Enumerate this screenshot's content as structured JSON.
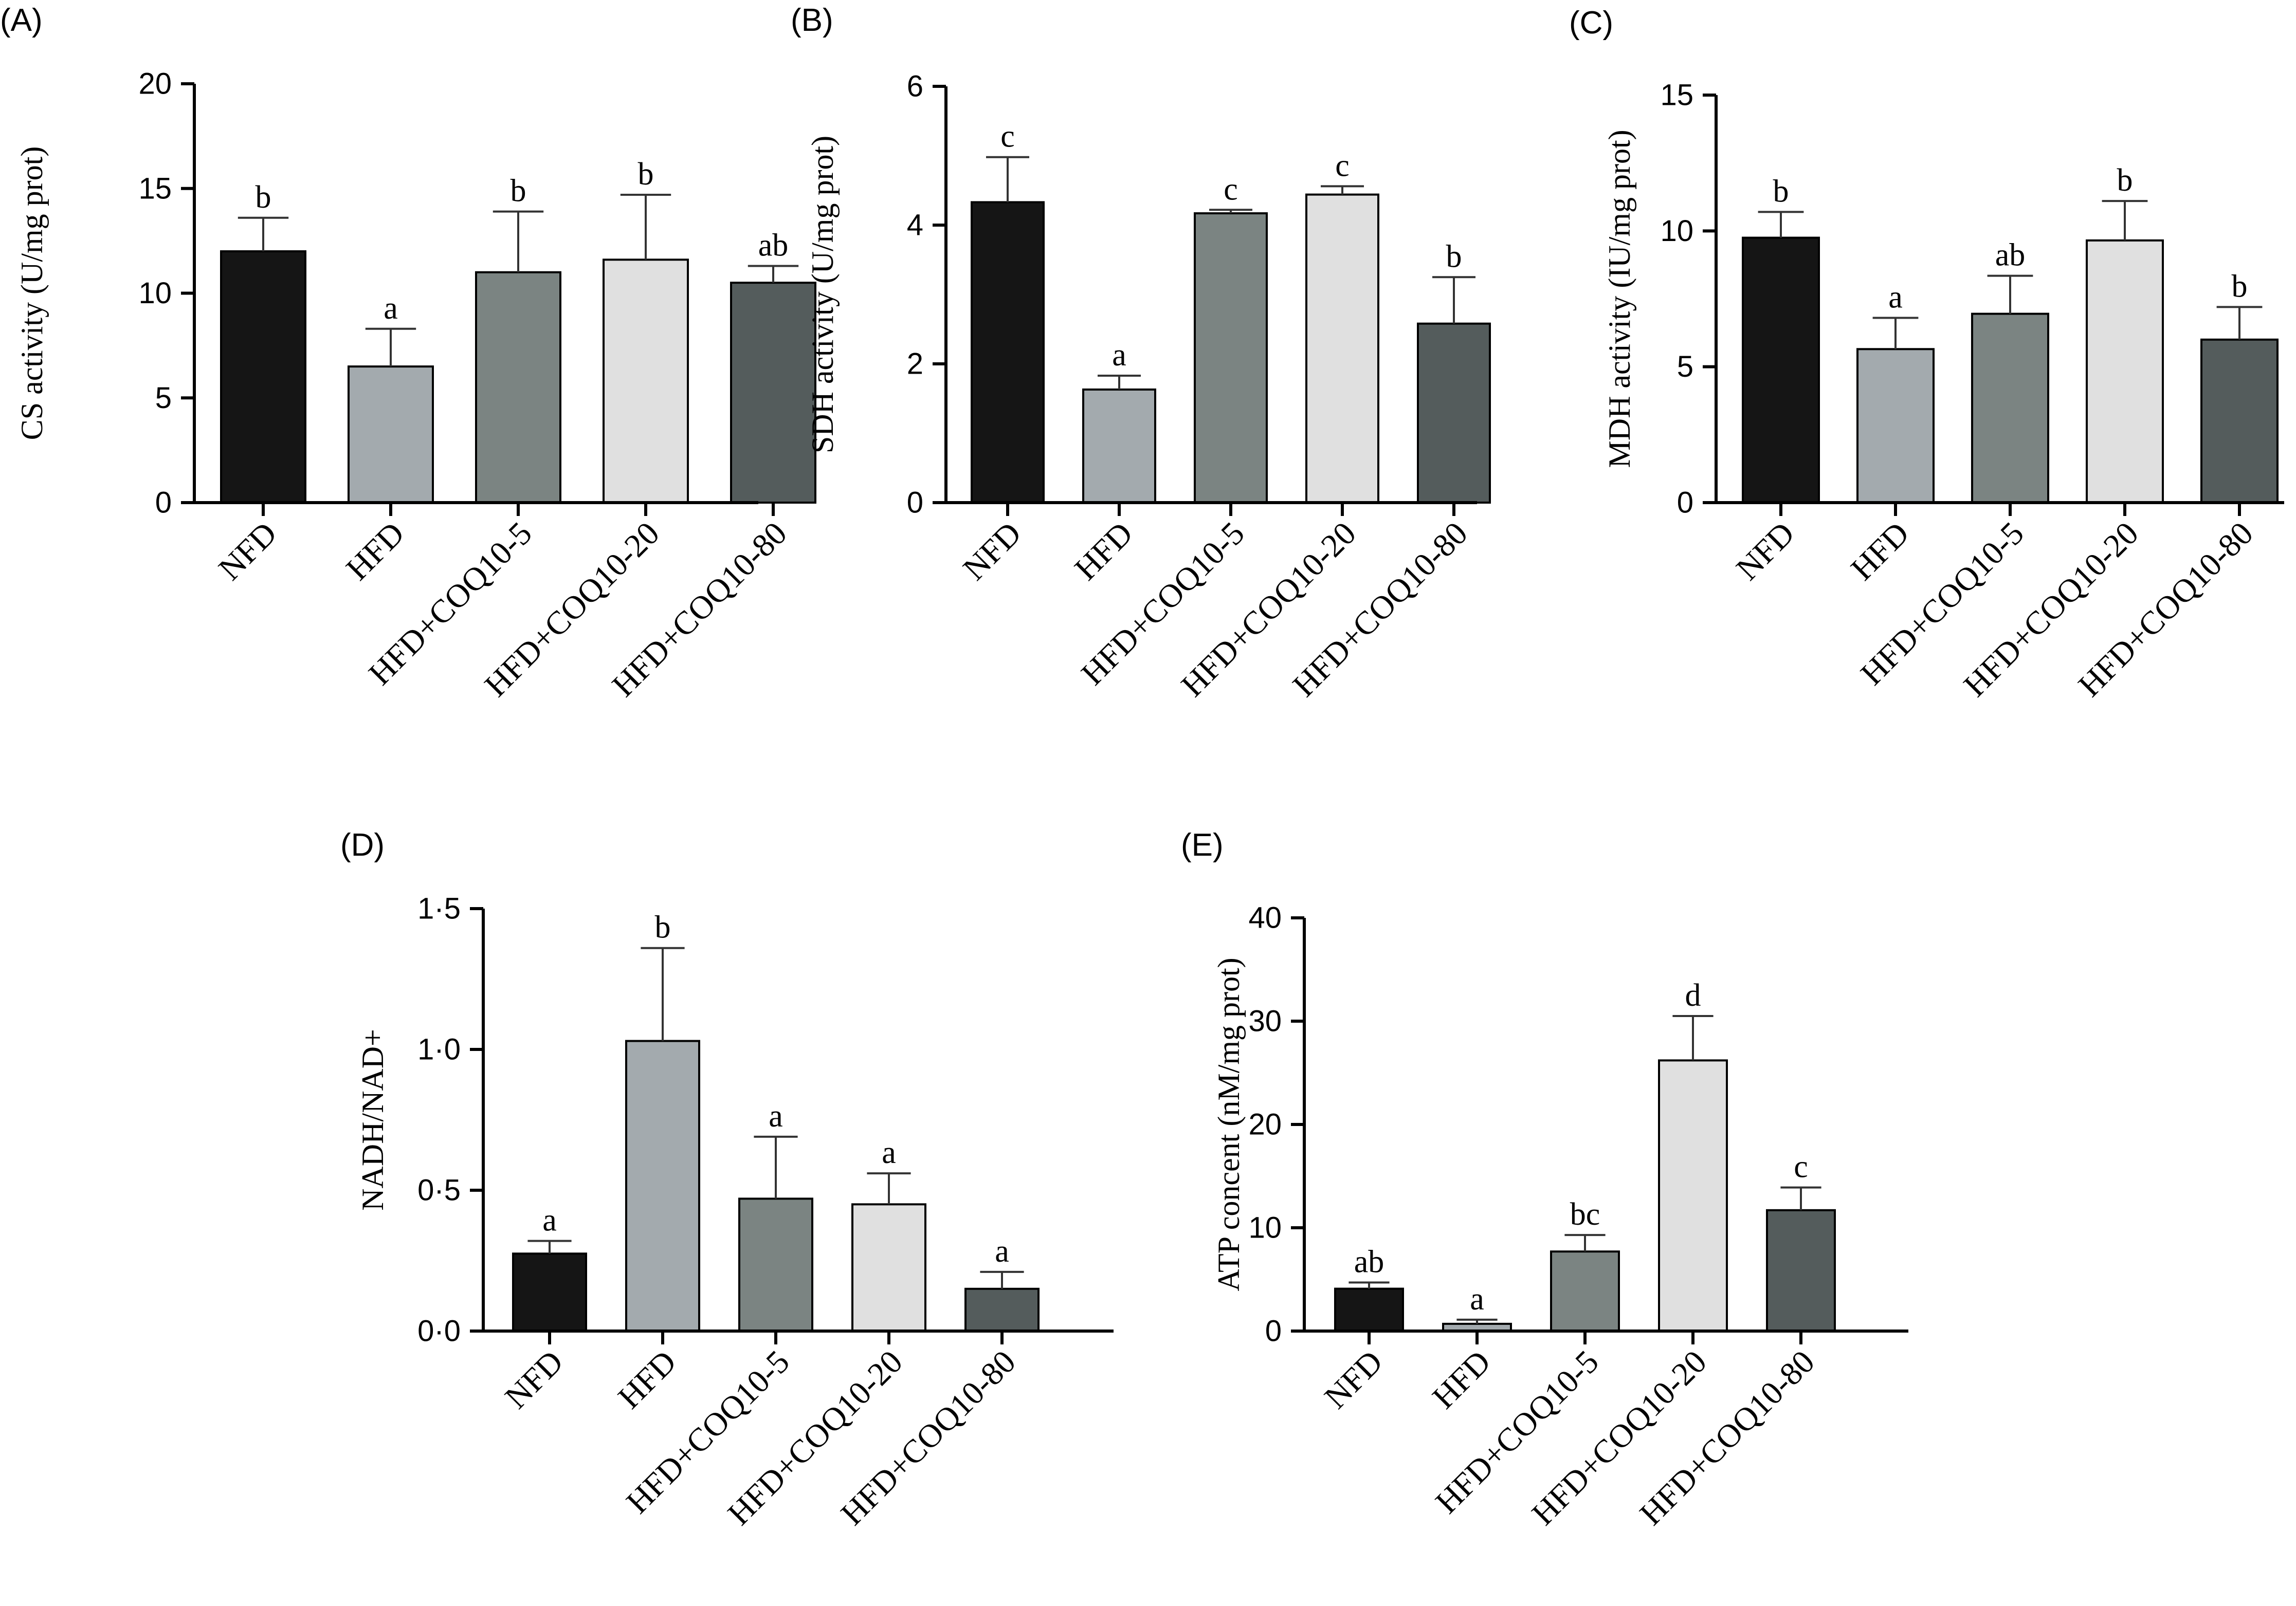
{
  "chart_data": [
    {
      "type": "bar",
      "panel": "(A)",
      "ylabel": "CS activity (U/mg prot)",
      "categories": [
        "NFD",
        "HFD",
        "HFD+COQ10-5",
        "HFD+COQ10-20",
        "HFD+COQ10-80"
      ],
      "values": [
        12.0,
        6.5,
        11.0,
        11.6,
        10.5
      ],
      "errors": [
        1.6,
        1.8,
        2.9,
        3.1,
        0.8
      ],
      "significance": [
        "b",
        "a",
        "b",
        "b",
        "ab"
      ],
      "ylim": [
        0,
        20
      ],
      "yticks": [
        0,
        5,
        10,
        15,
        20
      ],
      "ytick_labels": [
        "0",
        "5",
        "10",
        "15",
        "20"
      ],
      "bar_colors": [
        "#151515",
        "#a3aaae",
        "#7b8482",
        "#e0e0e0",
        "#545c5c"
      ]
    },
    {
      "type": "bar",
      "panel": "(B)",
      "ylabel": "SDH activity (U/mg prot)",
      "categories": [
        "NFD",
        "HFD",
        "HFD+COQ10-5",
        "HFD+COQ10-20",
        "HFD+COQ10-80"
      ],
      "values": [
        4.33,
        1.63,
        4.17,
        4.44,
        2.58
      ],
      "errors": [
        0.65,
        0.2,
        0.05,
        0.12,
        0.67
      ],
      "significance": [
        "c",
        "a",
        "c",
        "c",
        "b"
      ],
      "ylim": [
        0,
        6
      ],
      "yticks": [
        0,
        2,
        4,
        6
      ],
      "ytick_labels": [
        "0",
        "2",
        "4",
        "6"
      ],
      "bar_colors": [
        "#151515",
        "#a3aaae",
        "#7b8482",
        "#e0e0e0",
        "#545c5c"
      ]
    },
    {
      "type": "bar",
      "panel": "(C)",
      "ylabel": "MDH activity (IU/mg prot)",
      "categories": [
        "NFD",
        "HFD",
        "HFD+COQ10-5",
        "HFD+COQ10-20",
        "HFD+COQ10-80"
      ],
      "values": [
        9.75,
        5.65,
        6.95,
        9.65,
        6.0
      ],
      "errors": [
        0.95,
        1.15,
        1.4,
        1.45,
        1.2
      ],
      "significance": [
        "b",
        "a",
        "ab",
        "b",
        "b"
      ],
      "ylim": [
        0,
        15
      ],
      "yticks": [
        0,
        5,
        10,
        15
      ],
      "ytick_labels": [
        "0",
        "5",
        "10",
        "15"
      ],
      "bar_colors": [
        "#151515",
        "#a3aaae",
        "#7b8482",
        "#e0e0e0",
        "#545c5c"
      ]
    },
    {
      "type": "bar",
      "panel": "(D)",
      "ylabel": "NADH/NAD+",
      "categories": [
        "NFD",
        "HFD",
        "HFD+COQ10-5",
        "HFD+COQ10-20",
        "HFD+COQ10-80"
      ],
      "values": [
        0.275,
        1.03,
        0.47,
        0.45,
        0.15
      ],
      "errors": [
        0.045,
        0.33,
        0.22,
        0.11,
        0.06
      ],
      "significance": [
        "a",
        "b",
        "a",
        "a",
        "a"
      ],
      "ylim": [
        0,
        1.5
      ],
      "yticks": [
        0,
        0.5,
        1.0,
        1.5
      ],
      "ytick_labels": [
        "0·0",
        "0·5",
        "1·0",
        "1·5"
      ],
      "bar_colors": [
        "#151515",
        "#a3aaae",
        "#7b8482",
        "#e0e0e0",
        "#545c5c"
      ]
    },
    {
      "type": "bar",
      "panel": "(E)",
      "ylabel": "ATP concent (nM/mg prot)",
      "categories": [
        "NFD",
        "HFD",
        "HFD+COQ10-5",
        "HFD+COQ10-20",
        "HFD+COQ10-80"
      ],
      "values": [
        4.1,
        0.7,
        7.7,
        26.2,
        11.7
      ],
      "errors": [
        0.6,
        0.4,
        1.6,
        4.3,
        2.2
      ],
      "significance": [
        "ab",
        "a",
        "bc",
        "d",
        "c"
      ],
      "ylim": [
        0,
        40
      ],
      "yticks": [
        0,
        10,
        20,
        30,
        40
      ],
      "ytick_labels": [
        "0",
        "10",
        "20",
        "30",
        "40"
      ],
      "bar_colors": [
        "#151515",
        "#a3aaae",
        "#7b8482",
        "#e0e0e0",
        "#545c5c"
      ]
    }
  ]
}
